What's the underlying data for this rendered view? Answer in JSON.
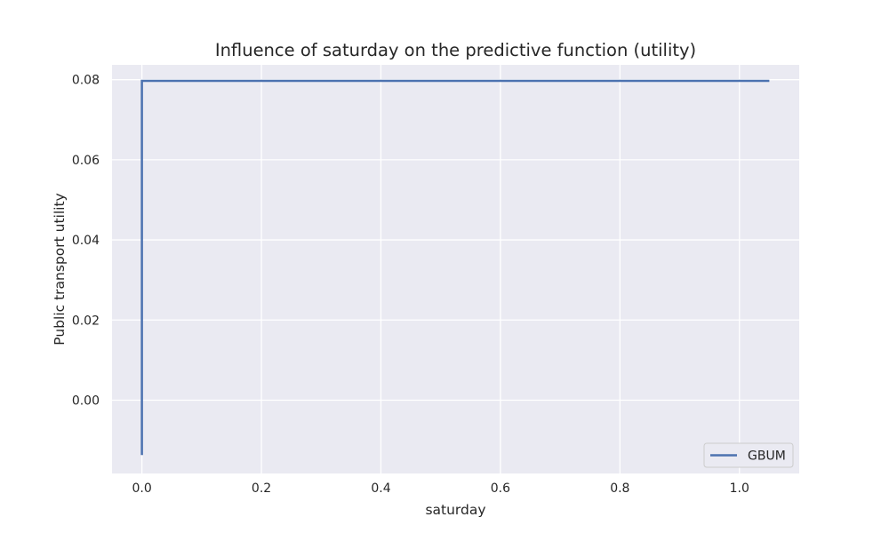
{
  "chart_data": {
    "type": "line",
    "title": "Influence of saturday on the predictive function (utility)",
    "xlabel": "saturday",
    "ylabel": "Public transport utility",
    "xlim": [
      -0.05,
      1.1
    ],
    "ylim": [
      -0.0183,
      0.0837
    ],
    "xticks": [
      0.0,
      0.2,
      0.4,
      0.6,
      0.8,
      1.0
    ],
    "xtick_labels": [
      "0.0",
      "0.2",
      "0.4",
      "0.6",
      "0.8",
      "1.0"
    ],
    "yticks": [
      0.0,
      0.02,
      0.04,
      0.06,
      0.08
    ],
    "ytick_labels": [
      "0.00",
      "0.02",
      "0.04",
      "0.06",
      "0.08"
    ],
    "grid": true,
    "legend_position": "lower-right",
    "background_color": "#eaeaf2",
    "series": [
      {
        "name": "GBUM",
        "color": "#4c72b0",
        "x": [
          0.0,
          0.0,
          1.05
        ],
        "y": [
          -0.0137,
          0.0797,
          0.0797
        ]
      }
    ]
  }
}
